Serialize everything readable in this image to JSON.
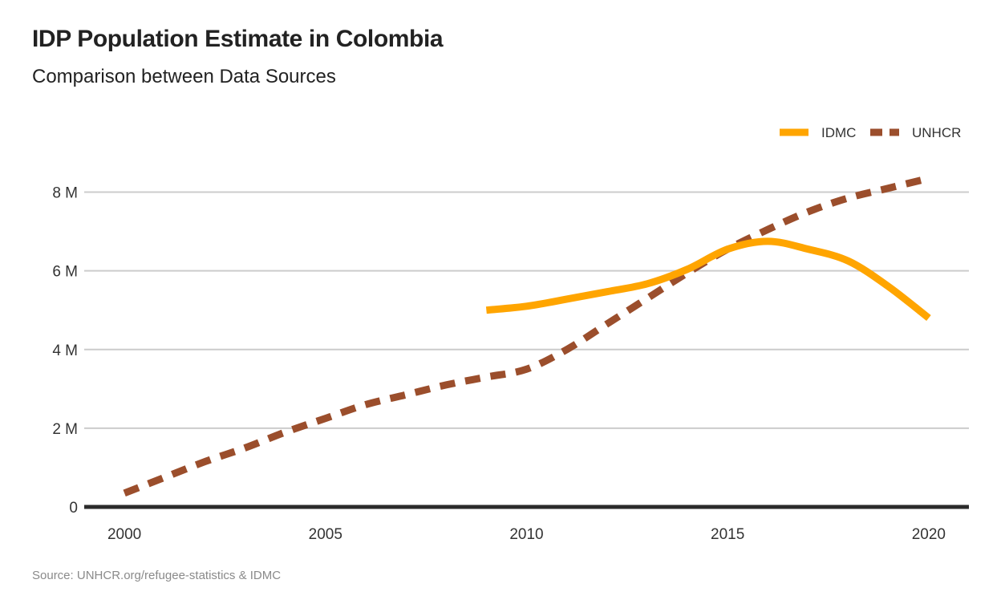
{
  "title": "IDP Population Estimate in Colombia",
  "subtitle": "Comparison between Data Sources",
  "source": "Source: UNHCR.org/refugee-statistics & IDMC",
  "chart_data": {
    "type": "line",
    "title": "IDP Population Estimate in Colombia",
    "subtitle": "Comparison between Data Sources",
    "xlabel": "",
    "ylabel": "",
    "xlim": [
      1999,
      2021
    ],
    "ylim": [
      0,
      8.5
    ],
    "x_ticks": [
      2000,
      2005,
      2010,
      2015,
      2020
    ],
    "x_tick_labels": [
      "2000",
      "2005",
      "2010",
      "2015",
      "2020"
    ],
    "y_ticks": [
      0,
      2,
      4,
      6,
      8
    ],
    "y_tick_labels": [
      "0",
      "2 M",
      "4 M",
      "6 M",
      "8 M"
    ],
    "grid": "horizontal",
    "legend_position": "top-right",
    "series": [
      {
        "name": "IDMC",
        "color": "#FFA500",
        "style": "solid",
        "x": [
          2009,
          2010,
          2011,
          2012,
          2013,
          2014,
          2015,
          2016,
          2017,
          2018,
          2019,
          2020
        ],
        "values": [
          5.0,
          5.1,
          5.28,
          5.47,
          5.67,
          6.04,
          6.55,
          6.75,
          6.55,
          6.25,
          5.6,
          4.8
        ]
      },
      {
        "name": "UNHCR",
        "color": "#9B4E2C",
        "style": "dashed",
        "x": [
          2000,
          2001,
          2002,
          2003,
          2004,
          2005,
          2006,
          2007,
          2008,
          2009,
          2010,
          2011,
          2012,
          2013,
          2014,
          2015,
          2016,
          2017,
          2018,
          2019,
          2020
        ],
        "values": [
          0.35,
          0.75,
          1.15,
          1.5,
          1.9,
          2.25,
          2.6,
          2.85,
          3.1,
          3.3,
          3.5,
          4.0,
          4.65,
          5.3,
          5.95,
          6.55,
          7.05,
          7.5,
          7.85,
          8.1,
          8.35
        ]
      }
    ]
  }
}
